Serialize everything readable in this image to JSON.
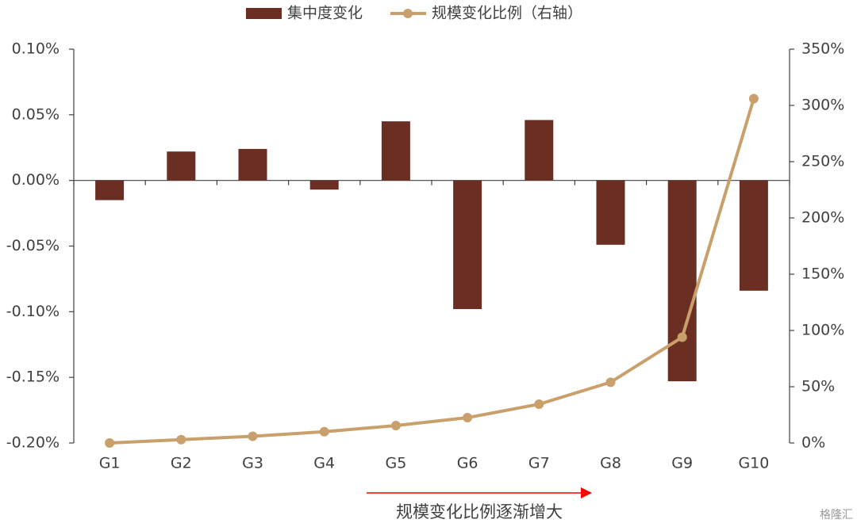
{
  "chart_data": {
    "type": "bar",
    "categories": [
      "G1",
      "G2",
      "G3",
      "G4",
      "G5",
      "G6",
      "G7",
      "G8",
      "G9",
      "G10"
    ],
    "series": [
      {
        "name": "集中度变化",
        "type": "bar",
        "color": "#6b2e22",
        "values": [
          -0.015,
          0.022,
          0.024,
          -0.007,
          0.045,
          -0.098,
          0.046,
          -0.049,
          -0.153,
          -0.084
        ]
      },
      {
        "name": "规模变化比例（右轴）",
        "type": "line",
        "axis": "y2",
        "color": "#c9a06b",
        "values": [
          0,
          3,
          6,
          10,
          15.5,
          22.5,
          34.5,
          54,
          94,
          306
        ]
      }
    ],
    "ylim": [
      -0.2,
      0.1
    ],
    "yticks": [
      {
        "value": -0.2,
        "label": "-0.20%"
      },
      {
        "value": -0.15,
        "label": "-0.15%"
      },
      {
        "value": -0.1,
        "label": "-0.10%"
      },
      {
        "value": -0.05,
        "label": "-0.05%"
      },
      {
        "value": 0,
        "label": "0.00%"
      },
      {
        "value": 0.05,
        "label": "0.05%"
      },
      {
        "value": 0.1,
        "label": "0.10%"
      }
    ],
    "y2lim": [
      0,
      350
    ],
    "y2ticks": [
      {
        "value": 0,
        "label": "0%"
      },
      {
        "value": 50,
        "label": "50%"
      },
      {
        "value": 100,
        "label": "100%"
      },
      {
        "value": 150,
        "label": "150%"
      },
      {
        "value": 200,
        "label": "200%"
      },
      {
        "value": 250,
        "label": "250%"
      },
      {
        "value": 300,
        "label": "300%"
      },
      {
        "value": 350,
        "label": "350%"
      }
    ],
    "grid": false,
    "legend": "top",
    "annotation": "规模变化比例逐渐增大",
    "watermark": "格隆汇"
  }
}
